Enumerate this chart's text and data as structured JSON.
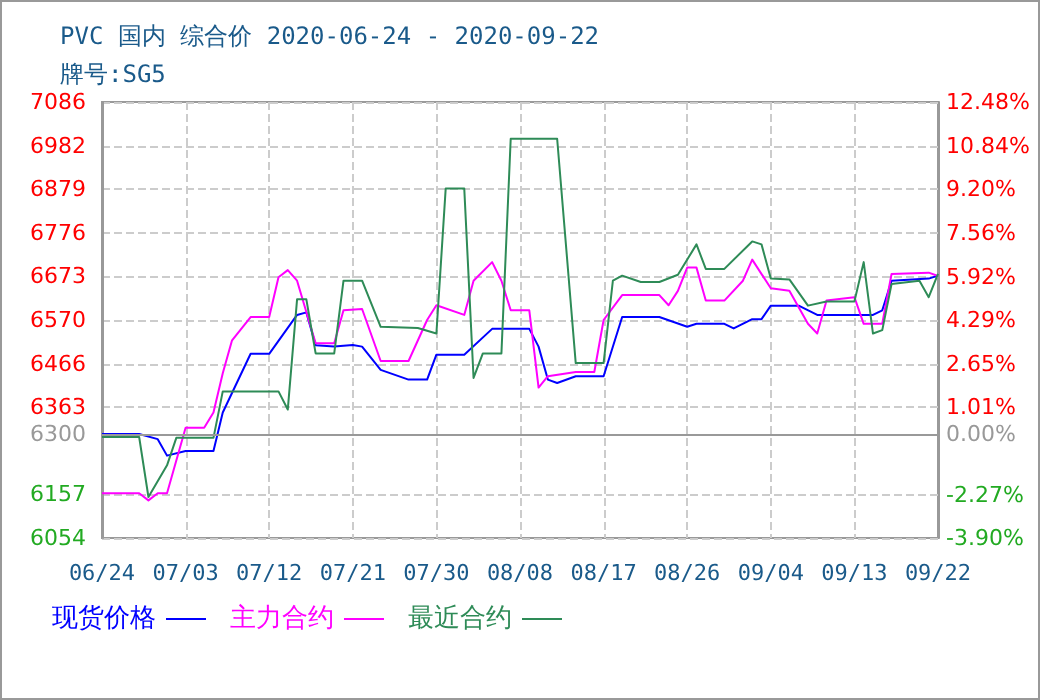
{
  "chart_data": {
    "type": "line",
    "title": "PVC 国内 综合价 2020-06-24 - 2020-09-22",
    "subtitle": "牌号:SG5",
    "xlim": [
      "2020-06-24",
      "2020-09-22"
    ],
    "xticks": [
      {
        "value": "2020-06-24",
        "label": "06/24"
      },
      {
        "value": "2020-07-03",
        "label": "07/03"
      },
      {
        "value": "2020-07-12",
        "label": "07/12"
      },
      {
        "value": "2020-07-21",
        "label": "07/21"
      },
      {
        "value": "2020-07-30",
        "label": "07/30"
      },
      {
        "value": "2020-08-08",
        "label": "08/08"
      },
      {
        "value": "2020-08-17",
        "label": "08/17"
      },
      {
        "value": "2020-08-26",
        "label": "08/26"
      },
      {
        "value": "2020-09-04",
        "label": "09/04"
      },
      {
        "value": "2020-09-13",
        "label": "09/13"
      },
      {
        "value": "2020-09-22",
        "label": "09/22"
      }
    ],
    "ylim": [
      6054,
      7086
    ],
    "yticks": [
      6054,
      6157,
      6300,
      6363,
      6466,
      6570,
      6673,
      6776,
      6879,
      6982,
      7086
    ],
    "y2lim": [
      -3.9,
      12.48
    ],
    "y2ticks": [
      {
        "value": -3.9,
        "label": "-3.90%"
      },
      {
        "value": -2.27,
        "label": "-2.27%"
      },
      {
        "value": 0,
        "label": "0.00%"
      },
      {
        "value": 1.01,
        "label": "1.01%"
      },
      {
        "value": 2.65,
        "label": "2.65%"
      },
      {
        "value": 4.29,
        "label": "4.29%"
      },
      {
        "value": 5.92,
        "label": "5.92%"
      },
      {
        "value": 7.56,
        "label": "7.56%"
      },
      {
        "value": 9.2,
        "label": "9.20%"
      },
      {
        "value": 10.84,
        "label": "10.84%"
      },
      {
        "value": 12.48,
        "label": "12.48%"
      }
    ],
    "ref_lines": [
      {
        "axis": "y",
        "value": 6300,
        "color": "#999999"
      }
    ],
    "grid": true,
    "legend": "bottom",
    "marker": "none",
    "line_style": "solid",
    "series": [
      {
        "name": "现货价格",
        "color": "#0000ff",
        "x": [
          "2020-06-24",
          "2020-06-28",
          "2020-06-30",
          "2020-07-01",
          "2020-07-03",
          "2020-07-06",
          "2020-07-07",
          "2020-07-10",
          "2020-07-12",
          "2020-07-15",
          "2020-07-16",
          "2020-07-17",
          "2020-07-19",
          "2020-07-21",
          "2020-07-22",
          "2020-07-24",
          "2020-07-27",
          "2020-07-29",
          "2020-07-30",
          "2020-08-02",
          "2020-08-05",
          "2020-08-09",
          "2020-08-10",
          "2020-08-11",
          "2020-08-12",
          "2020-08-14",
          "2020-08-17",
          "2020-08-19",
          "2020-08-23",
          "2020-08-26",
          "2020-08-27",
          "2020-08-30",
          "2020-08-31",
          "2020-09-02",
          "2020-09-03",
          "2020-09-04",
          "2020-09-07",
          "2020-09-09",
          "2020-09-15",
          "2020-09-16",
          "2020-09-17",
          "2020-09-21",
          "2020-09-22"
        ],
        "values": [
          6300,
          6300,
          6288,
          6249,
          6260,
          6260,
          6351,
          6490,
          6490,
          6582,
          6588,
          6510,
          6507,
          6511,
          6507,
          6452,
          6429,
          6429,
          6488,
          6488,
          6549,
          6549,
          6507,
          6429,
          6421,
          6437,
          6437,
          6577,
          6577,
          6554,
          6561,
          6561,
          6550,
          6572,
          6572,
          6604,
          6604,
          6582,
          6582,
          6593,
          6663,
          6668,
          6675
        ]
      },
      {
        "name": "主力合约",
        "color": "#ff00ff",
        "x": [
          "2020-06-24",
          "2020-06-28",
          "2020-06-29",
          "2020-06-30",
          "2020-07-01",
          "2020-07-03",
          "2020-07-05",
          "2020-07-06",
          "2020-07-07",
          "2020-07-08",
          "2020-07-10",
          "2020-07-12",
          "2020-07-13",
          "2020-07-14",
          "2020-07-15",
          "2020-07-17",
          "2020-07-19",
          "2020-07-20",
          "2020-07-22",
          "2020-07-24",
          "2020-07-27",
          "2020-07-29",
          "2020-07-30",
          "2020-08-02",
          "2020-08-03",
          "2020-08-05",
          "2020-08-06",
          "2020-08-07",
          "2020-08-09",
          "2020-08-10",
          "2020-08-11",
          "2020-08-14",
          "2020-08-16",
          "2020-08-17",
          "2020-08-19",
          "2020-08-23",
          "2020-08-24",
          "2020-08-25",
          "2020-08-26",
          "2020-08-27",
          "2020-08-28",
          "2020-08-30",
          "2020-09-01",
          "2020-09-02",
          "2020-09-04",
          "2020-09-06",
          "2020-09-08",
          "2020-09-09",
          "2020-09-10",
          "2020-09-13",
          "2020-09-14",
          "2020-09-16",
          "2020-09-17",
          "2020-09-21",
          "2020-09-22"
        ],
        "values": [
          6160,
          6160,
          6143,
          6160,
          6160,
          6315,
          6315,
          6351,
          6444,
          6522,
          6577,
          6577,
          6671,
          6688,
          6663,
          6515,
          6515,
          6593,
          6596,
          6473,
          6473,
          6570,
          6605,
          6582,
          6663,
          6707,
          6663,
          6593,
          6593,
          6410,
          6437,
          6447,
          6447,
          6570,
          6629,
          6629,
          6605,
          6639,
          6694,
          6694,
          6616,
          6616,
          6663,
          6713,
          6645,
          6639,
          6561,
          6538,
          6616,
          6624,
          6561,
          6561,
          6679,
          6682,
          6674
        ]
      },
      {
        "name": "最近合约",
        "color": "#2e8b57",
        "x": [
          "2020-06-24",
          "2020-06-28",
          "2020-06-29",
          "2020-07-01",
          "2020-07-02",
          "2020-07-06",
          "2020-07-07",
          "2020-07-13",
          "2020-07-14",
          "2020-07-15",
          "2020-07-16",
          "2020-07-17",
          "2020-07-19",
          "2020-07-20",
          "2020-07-22",
          "2020-07-24",
          "2020-07-28",
          "2020-07-30",
          "2020-07-31",
          "2020-08-02",
          "2020-08-03",
          "2020-08-04",
          "2020-08-06",
          "2020-08-07",
          "2020-08-12",
          "2020-08-14",
          "2020-08-17",
          "2020-08-18",
          "2020-08-19",
          "2020-08-21",
          "2020-08-23",
          "2020-08-25",
          "2020-08-27",
          "2020-08-28",
          "2020-08-30",
          "2020-09-02",
          "2020-09-03",
          "2020-09-04",
          "2020-09-06",
          "2020-09-08",
          "2020-09-10",
          "2020-09-13",
          "2020-09-14",
          "2020-09-15",
          "2020-09-16",
          "2020-09-17",
          "2020-09-20",
          "2020-09-21",
          "2020-09-22"
        ],
        "values": [
          6293,
          6293,
          6151,
          6226,
          6291,
          6291,
          6401,
          6401,
          6358,
          6619,
          6619,
          6491,
          6491,
          6663,
          6663,
          6554,
          6551,
          6538,
          6881,
          6881,
          6433,
          6491,
          6491,
          6999,
          6999,
          6468,
          6468,
          6663,
          6675,
          6660,
          6660,
          6677,
          6749,
          6691,
          6691,
          6756,
          6749,
          6668,
          6666,
          6604,
          6614,
          6614,
          6707,
          6538,
          6546,
          6655,
          6663,
          6624,
          6679
        ]
      }
    ]
  }
}
